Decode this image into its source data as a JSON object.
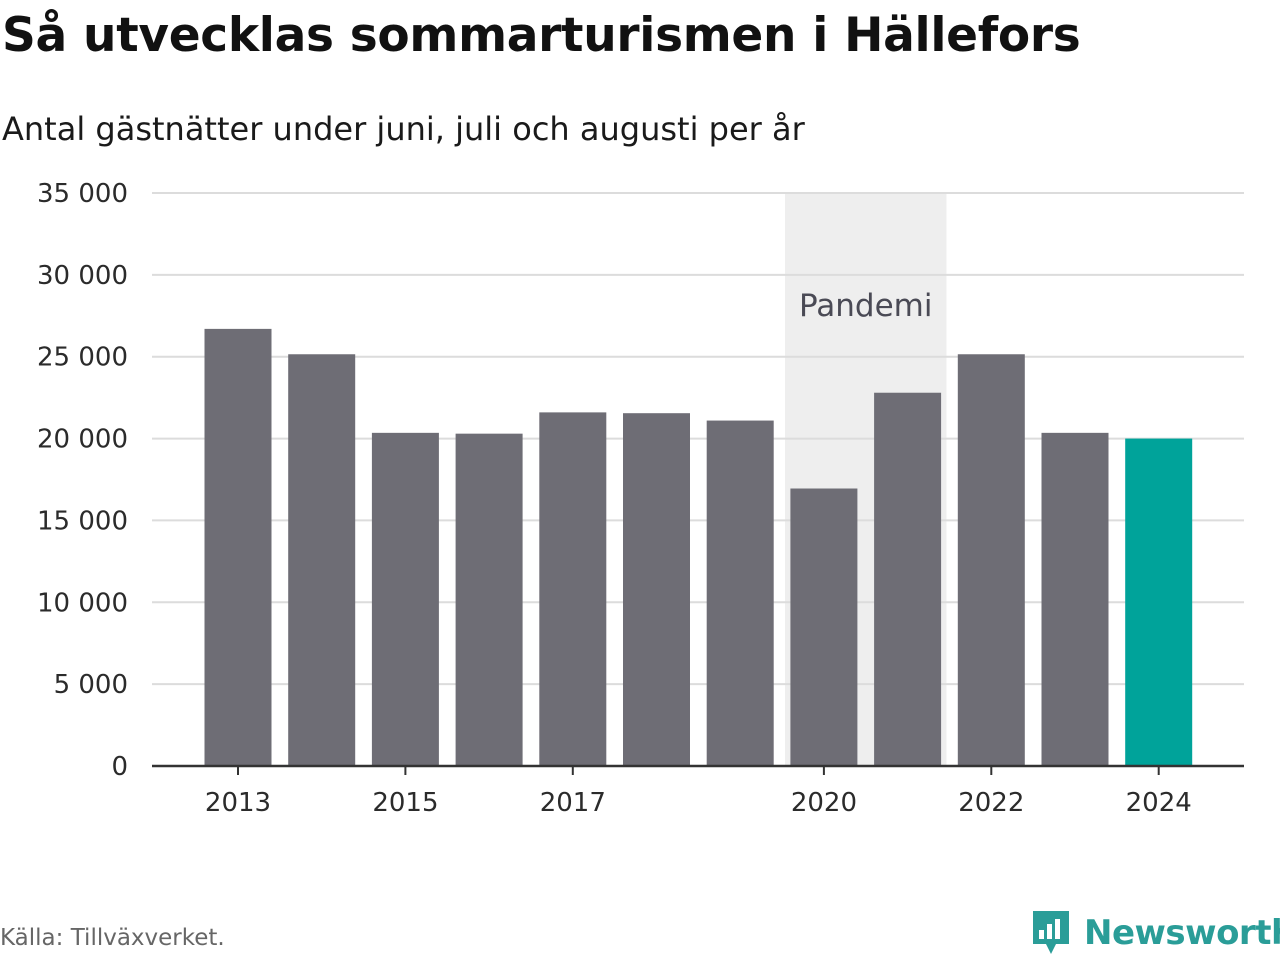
{
  "title": "Så utvecklas sommarturismen i Hällefors",
  "subtitle": "Antal gästnätter under juni, juli och augusti per år",
  "source": "Källa: Tillväxverket.",
  "brand": {
    "name": "Newsworthy",
    "icon": "newsworthy-logo-icon",
    "color": "#2a9d98"
  },
  "chart_data": {
    "type": "bar",
    "title": "Så utvecklas sommarturismen i Hällefors",
    "subtitle": "Antal gästnätter under juni, juli och augusti per år",
    "categories": [
      "2013",
      "2014",
      "2015",
      "2016",
      "2017",
      "2018",
      "2019",
      "2020",
      "2021",
      "2022",
      "2023",
      "2024"
    ],
    "values": [
      26700,
      25150,
      20350,
      20300,
      21600,
      21550,
      21100,
      16950,
      22800,
      25150,
      20350,
      20000
    ],
    "x_tick_labels": [
      "2013",
      "2015",
      "2017",
      "2020",
      "2022",
      "2024"
    ],
    "y_ticks": [
      0,
      5000,
      10000,
      15000,
      20000,
      25000,
      30000,
      35000
    ],
    "y_tick_labels": [
      "0",
      "5 000",
      "10 000",
      "15 000",
      "20 000",
      "25 000",
      "30 000",
      "35 000"
    ],
    "ylim": [
      0,
      35000
    ],
    "grid": true,
    "xlabel": "",
    "ylabel": "",
    "bar_color": "#6e6d75",
    "highlight_category": "2024",
    "highlight_color": "#00a39a",
    "annotation": {
      "label": "Pandemi",
      "from": "2020",
      "to": "2021",
      "color": "#eeeeee"
    }
  }
}
